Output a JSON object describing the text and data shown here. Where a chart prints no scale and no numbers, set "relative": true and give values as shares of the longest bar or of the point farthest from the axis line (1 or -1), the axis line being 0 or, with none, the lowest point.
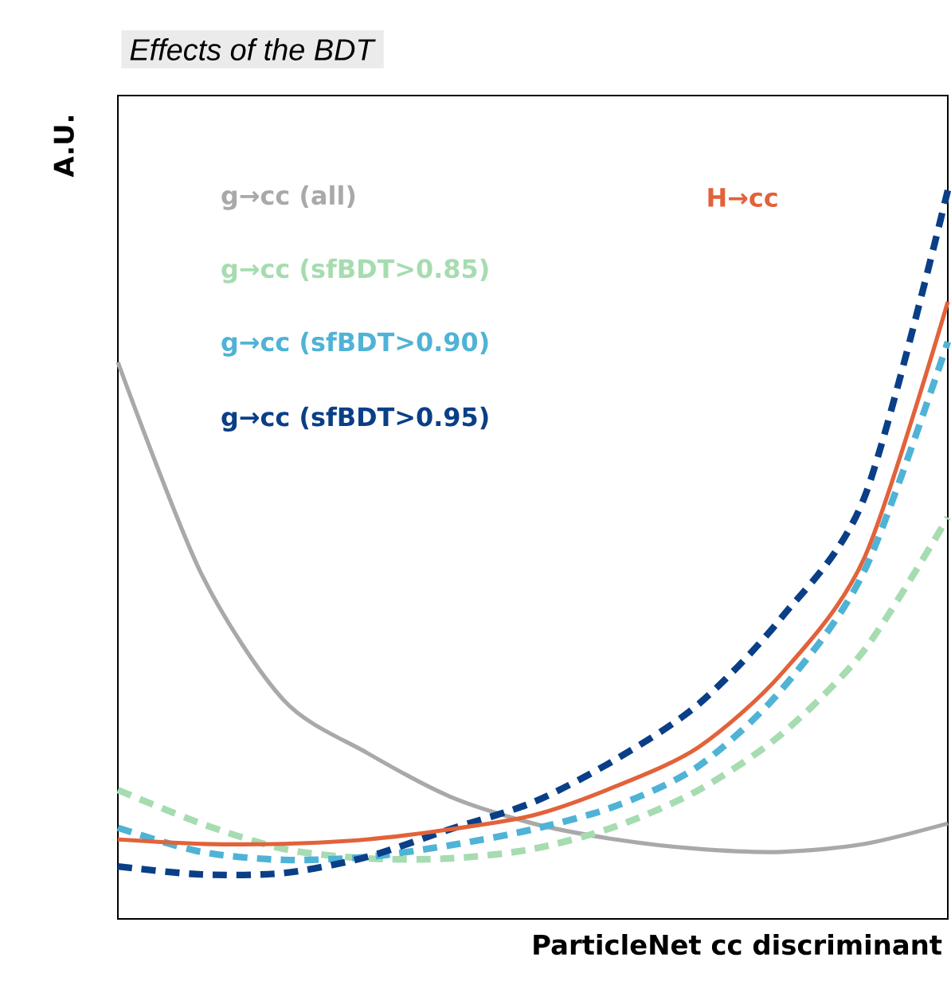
{
  "chart_data": {
    "type": "line",
    "title": "*Effects of the BDT*",
    "xlabel": "ParticleNet cc discriminant",
    "ylabel": "A.U.",
    "relative": true,
    "categories": [
      null,
      null,
      null,
      null,
      null,
      null,
      null,
      null,
      null,
      null,
      null
    ],
    "series": [
      {
        "name": "g→cc (all)",
        "color": "#a9a9a9",
        "line_style": "solid",
        "values": [
          0.764,
          0.475,
          0.3,
          0.228,
          0.168,
          0.131,
          0.109,
          0.096,
          0.092,
          0.103,
          0.131
        ]
      },
      {
        "name": "g→cc (sfBDT>0.85)",
        "color": "#a6dcb0",
        "line_style": "dashed",
        "values": [
          0.177,
          0.131,
          0.096,
          0.083,
          0.083,
          0.096,
          0.127,
          0.177,
          0.254,
          0.37,
          0.551
        ]
      },
      {
        "name": "g→cc (sfBDT>0.90)",
        "color": "#4fb3d6",
        "line_style": "dashed",
        "values": [
          0.125,
          0.092,
          0.081,
          0.085,
          0.101,
          0.123,
          0.155,
          0.21,
          0.315,
          0.479,
          0.792
        ]
      },
      {
        "name": "g→cc (sfBDT>0.95)",
        "color": "#0a3f87",
        "line_style": "dashed",
        "values": [
          0.072,
          0.061,
          0.063,
          0.085,
          0.123,
          0.16,
          0.219,
          0.295,
          0.414,
          0.58,
          1
        ]
      },
      {
        "name": "H→cc",
        "color": "#e2623a",
        "line_style": "solid",
        "values": [
          0.109,
          0.103,
          0.103,
          0.109,
          0.123,
          0.142,
          0.182,
          0.236,
          0.337,
          0.497,
          0.847
        ]
      }
    ]
  }
}
